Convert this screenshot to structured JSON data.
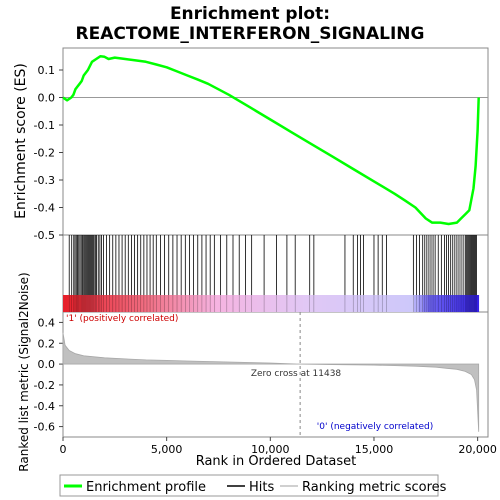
{
  "chart_data": {
    "type": "line",
    "title_line1": "Enrichment plot:",
    "title_line2": "REACTOME_INTERFERON_SIGNALING",
    "es_panel": {
      "ylabel": "Enrichment score (ES)",
      "ylim": [
        -0.5,
        0.18
      ],
      "yticks": [
        0.1,
        0.0,
        -0.1,
        -0.2,
        -0.3,
        -0.4,
        -0.5
      ],
      "ytick_labels": [
        "0.1",
        "0.0",
        "-0.1",
        "-0.2",
        "-0.3",
        "-0.4",
        "-0.5"
      ],
      "series_name": "Enrichment profile",
      "line_color": "#00ff00",
      "points": [
        [
          0,
          0.0
        ],
        [
          200,
          -0.01
        ],
        [
          400,
          0.0
        ],
        [
          500,
          0.01
        ],
        [
          600,
          0.03
        ],
        [
          700,
          0.04
        ],
        [
          800,
          0.05
        ],
        [
          900,
          0.06
        ],
        [
          1000,
          0.08
        ],
        [
          1200,
          0.1
        ],
        [
          1400,
          0.13
        ],
        [
          1600,
          0.14
        ],
        [
          1800,
          0.15
        ],
        [
          2000,
          0.148
        ],
        [
          2200,
          0.14
        ],
        [
          2500,
          0.145
        ],
        [
          3000,
          0.14
        ],
        [
          3500,
          0.135
        ],
        [
          4000,
          0.13
        ],
        [
          4500,
          0.12
        ],
        [
          5000,
          0.11
        ],
        [
          5500,
          0.095
        ],
        [
          6000,
          0.08
        ],
        [
          6500,
          0.065
        ],
        [
          7000,
          0.05
        ],
        [
          7500,
          0.03
        ],
        [
          8000,
          0.01
        ],
        [
          9000,
          -0.035
        ],
        [
          10000,
          -0.08
        ],
        [
          11000,
          -0.125
        ],
        [
          12000,
          -0.17
        ],
        [
          13000,
          -0.215
        ],
        [
          14000,
          -0.26
        ],
        [
          15000,
          -0.305
        ],
        [
          16000,
          -0.35
        ],
        [
          16500,
          -0.375
        ],
        [
          17000,
          -0.4
        ],
        [
          17500,
          -0.44
        ],
        [
          17800,
          -0.455
        ],
        [
          18200,
          -0.455
        ],
        [
          18600,
          -0.46
        ],
        [
          19000,
          -0.455
        ],
        [
          19200,
          -0.44
        ],
        [
          19400,
          -0.425
        ],
        [
          19600,
          -0.41
        ],
        [
          19700,
          -0.37
        ],
        [
          19800,
          -0.33
        ],
        [
          19900,
          -0.25
        ],
        [
          20000,
          -0.12
        ],
        [
          20050,
          0.0
        ]
      ]
    },
    "hits_panel": {
      "series_name": "Hits",
      "hit_ranks": [
        300,
        420,
        520,
        580,
        640,
        700,
        760,
        820,
        880,
        940,
        1000,
        1050,
        1100,
        1150,
        1200,
        1250,
        1300,
        1350,
        1400,
        1450,
        1500,
        1560,
        1620,
        1700,
        1780,
        1860,
        1950,
        2100,
        2250,
        2400,
        2550,
        2700,
        2850,
        3000,
        3150,
        3300,
        3450,
        3600,
        3750,
        3900,
        4050,
        4200,
        4350,
        4500,
        4700,
        4900,
        5100,
        5300,
        5500,
        5700,
        5900,
        6100,
        6300,
        6500,
        6700,
        6900,
        7100,
        7300,
        7600,
        7900,
        8200,
        8500,
        8800,
        9100,
        9700,
        10300,
        10800,
        11200,
        11900,
        12100,
        13600,
        14000,
        14200,
        14350,
        14500,
        15000,
        15200,
        15400,
        15600,
        16900,
        17050,
        17200,
        17350,
        17450,
        17550,
        17650,
        17750,
        17850,
        17950,
        18100,
        18250,
        18400,
        18500,
        18600,
        18700,
        18800,
        18900,
        19000,
        19100,
        19200,
        19300,
        19400,
        19450,
        19500,
        19550,
        19600,
        19650,
        19700,
        19750,
        19800,
        19850,
        19900,
        19950
      ]
    },
    "metric_panel": {
      "ylabel": "Ranked list metric (Signal2Noise)",
      "ylim": [
        -0.7,
        0.5
      ],
      "yticks": [
        0.4,
        0.2,
        0.0,
        -0.2,
        -0.4,
        -0.6
      ],
      "ytick_labels": [
        "0.4",
        "0.2",
        "0.0",
        "-0.2",
        "-0.4",
        "-0.6"
      ],
      "series_name": "Ranking metric scores",
      "fill_color": "#c0c0c0",
      "points": [
        [
          0,
          0.3
        ],
        [
          100,
          0.18
        ],
        [
          300,
          0.13
        ],
        [
          600,
          0.1
        ],
        [
          1000,
          0.08
        ],
        [
          2000,
          0.06
        ],
        [
          3000,
          0.05
        ],
        [
          4000,
          0.04
        ],
        [
          5000,
          0.035
        ],
        [
          6000,
          0.03
        ],
        [
          7000,
          0.025
        ],
        [
          8000,
          0.02
        ],
        [
          9000,
          0.015
        ],
        [
          10000,
          0.01
        ],
        [
          11438,
          0.0
        ],
        [
          13000,
          -0.005
        ],
        [
          15000,
          -0.01
        ],
        [
          16000,
          -0.015
        ],
        [
          17000,
          -0.02
        ],
        [
          18000,
          -0.03
        ],
        [
          18500,
          -0.04
        ],
        [
          19000,
          -0.05
        ],
        [
          19400,
          -0.07
        ],
        [
          19700,
          -0.1
        ],
        [
          19850,
          -0.15
        ],
        [
          19950,
          -0.25
        ],
        [
          20050,
          -0.65
        ]
      ],
      "pos_label": "'1' (positively correlated)",
      "neg_label": "'0' (negatively correlated)",
      "zero_cross_label": "Zero cross at 11438",
      "zero_cross_rank": 11438
    },
    "xlabel": "Rank in Ordered Dataset",
    "xlim": [
      0,
      20500
    ],
    "xticks": [
      0,
      5000,
      10000,
      15000,
      20000
    ],
    "xtick_labels": [
      "0",
      "5,000",
      "10,000",
      "15,000",
      "20,000"
    ],
    "legend": {
      "placement": "bottom",
      "items": [
        "Enrichment profile",
        "Hits",
        "Ranking metric scores"
      ]
    },
    "colors": {
      "es_line": "#00ff00",
      "pos_label": "#cc0000",
      "neg_label": "#0000cc",
      "heat_red": "#ee3333",
      "heat_pink": "#f4b7e0",
      "heat_lilac": "#d8c8f8",
      "heat_blue": "#4433ee"
    }
  }
}
